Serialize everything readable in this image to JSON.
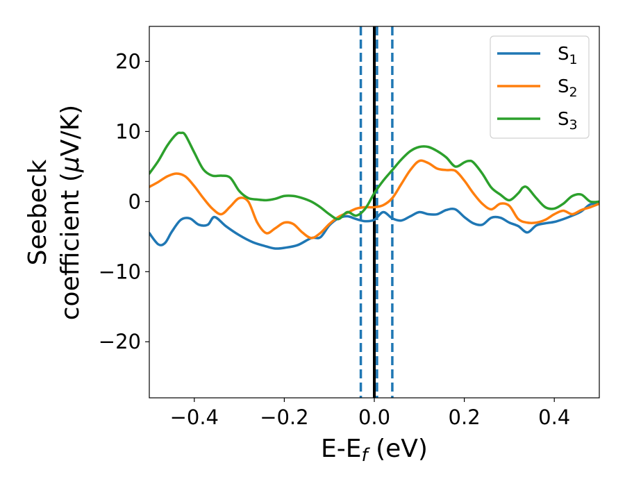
{
  "chart_data": {
    "type": "line",
    "title": "",
    "xlabel": "E-E",
    "xlabel_sub": "f",
    "xlabel_unit": " (eV)",
    "ylabel_line1": "Seebeck",
    "ylabel_line2": "coefficient  (",
    "ylabel_mu": "μ",
    "ylabel_unit": "V/K)",
    "xlim": [
      -0.5,
      0.5
    ],
    "ylim": [
      -28,
      25
    ],
    "xticks": [
      -0.4,
      -0.2,
      0.0,
      0.2,
      0.4
    ],
    "xtick_labels": [
      "−0.4",
      "−0.2",
      "0.0",
      "0.2",
      "0.4"
    ],
    "yticks": [
      -20,
      -10,
      0,
      10,
      20
    ],
    "ytick_labels": [
      "−20",
      "−10",
      "0",
      "10",
      "20"
    ],
    "legend_position": "top-right",
    "grid": false,
    "vlines": [
      {
        "x": -0.03,
        "style": "dashed",
        "color": "#1f77b4"
      },
      {
        "x": 0.0,
        "style": "solid",
        "color": "#000000"
      },
      {
        "x": 0.006,
        "style": "dashed",
        "color": "#1f77b4"
      },
      {
        "x": 0.04,
        "style": "dashed",
        "color": "#1f77b4"
      }
    ],
    "series": [
      {
        "name": "S",
        "sub": "1",
        "color": "#1f77b4",
        "x": [
          -0.5,
          -0.48,
          -0.465,
          -0.45,
          -0.43,
          -0.41,
          -0.39,
          -0.37,
          -0.355,
          -0.33,
          -0.3,
          -0.27,
          -0.24,
          -0.22,
          -0.2,
          -0.17,
          -0.14,
          -0.12,
          -0.1,
          -0.08,
          -0.06,
          -0.04,
          -0.02,
          0.0,
          0.02,
          0.04,
          0.06,
          0.08,
          0.1,
          0.12,
          0.14,
          0.16,
          0.18,
          0.2,
          0.22,
          0.24,
          0.26,
          0.28,
          0.3,
          0.32,
          0.34,
          0.36,
          0.38,
          0.4,
          0.42,
          0.44,
          0.46,
          0.48,
          0.5
        ],
        "y": [
          -4.5,
          -6.1,
          -5.9,
          -4.3,
          -2.6,
          -2.4,
          -3.3,
          -3.3,
          -2.2,
          -3.5,
          -4.8,
          -5.8,
          -6.4,
          -6.7,
          -6.6,
          -6.2,
          -5.2,
          -5.1,
          -3.4,
          -2.4,
          -2.1,
          -2.5,
          -2.8,
          -2.6,
          -1.5,
          -2.4,
          -2.7,
          -2.1,
          -1.5,
          -1.8,
          -1.8,
          -1.2,
          -1.1,
          -2.2,
          -3.1,
          -3.3,
          -2.3,
          -2.3,
          -3.0,
          -3.5,
          -4.4,
          -3.4,
          -3.1,
          -2.9,
          -2.5,
          -2.0,
          -1.4,
          -0.4,
          -0.3
        ]
      },
      {
        "name": "S",
        "sub": "2",
        "color": "#ff7f0e",
        "x": [
          -0.5,
          -0.48,
          -0.46,
          -0.44,
          -0.42,
          -0.4,
          -0.38,
          -0.36,
          -0.34,
          -0.32,
          -0.3,
          -0.28,
          -0.26,
          -0.24,
          -0.22,
          -0.2,
          -0.18,
          -0.16,
          -0.14,
          -0.12,
          -0.1,
          -0.08,
          -0.06,
          -0.04,
          -0.02,
          0.0,
          0.02,
          0.04,
          0.06,
          0.08,
          0.1,
          0.12,
          0.14,
          0.16,
          0.18,
          0.2,
          0.22,
          0.24,
          0.26,
          0.28,
          0.3,
          0.32,
          0.34,
          0.36,
          0.38,
          0.4,
          0.42,
          0.44,
          0.46,
          0.48,
          0.5
        ],
        "y": [
          2.1,
          2.8,
          3.6,
          4.0,
          3.6,
          2.2,
          0.5,
          -1.0,
          -1.8,
          -0.7,
          0.5,
          0.0,
          -3.0,
          -4.5,
          -3.8,
          -3.0,
          -3.2,
          -4.4,
          -5.2,
          -4.5,
          -3.2,
          -2.2,
          -1.6,
          -1.0,
          -0.8,
          -0.8,
          -0.5,
          0.5,
          2.5,
          4.5,
          5.8,
          5.5,
          4.7,
          4.5,
          4.4,
          3.0,
          1.2,
          -0.3,
          -1.1,
          -0.3,
          -0.6,
          -2.5,
          -3.0,
          -3.0,
          -2.6,
          -1.8,
          -1.3,
          -1.8,
          -1.2,
          -0.8,
          -0.3
        ]
      },
      {
        "name": "S",
        "sub": "3",
        "color": "#2ca02c",
        "x": [
          -0.5,
          -0.48,
          -0.46,
          -0.44,
          -0.43,
          -0.42,
          -0.4,
          -0.38,
          -0.36,
          -0.34,
          -0.32,
          -0.3,
          -0.28,
          -0.26,
          -0.24,
          -0.22,
          -0.2,
          -0.18,
          -0.16,
          -0.14,
          -0.12,
          -0.1,
          -0.08,
          -0.06,
          -0.04,
          -0.02,
          0.0,
          0.02,
          0.04,
          0.06,
          0.08,
          0.1,
          0.12,
          0.14,
          0.16,
          0.18,
          0.2,
          0.21,
          0.22,
          0.24,
          0.26,
          0.28,
          0.3,
          0.32,
          0.33,
          0.34,
          0.36,
          0.38,
          0.4,
          0.42,
          0.44,
          0.46,
          0.48,
          0.5
        ],
        "y": [
          4.0,
          5.8,
          8.0,
          9.6,
          9.8,
          9.5,
          7.0,
          4.6,
          3.7,
          3.7,
          3.4,
          1.5,
          0.5,
          0.3,
          0.2,
          0.4,
          0.8,
          0.8,
          0.5,
          0.0,
          -0.8,
          -1.8,
          -2.5,
          -1.5,
          -2.0,
          -1.0,
          1.2,
          3.0,
          4.5,
          6.0,
          7.2,
          7.8,
          7.8,
          7.2,
          6.3,
          5.0,
          5.6,
          5.8,
          5.6,
          4.0,
          2.0,
          1.0,
          0.2,
          1.2,
          2.0,
          2.0,
          0.5,
          -0.8,
          -1.0,
          -0.3,
          0.8,
          1.0,
          0.0,
          0.0
        ]
      }
    ]
  }
}
